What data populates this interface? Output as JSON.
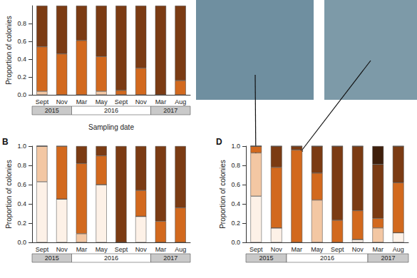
{
  "chart_data": [
    {
      "type": "bar",
      "stacked": true,
      "y_label": "Proportion of colonies",
      "x_label": "Sampling date",
      "categories": [
        "Sept",
        "Nov",
        "Mar",
        "May",
        "Sept",
        "Nov",
        "Mar",
        "Aug"
      ],
      "year_groups": [
        {
          "label": "2015",
          "span": 2
        },
        {
          "label": "2016",
          "span": 4
        },
        {
          "label": "2017",
          "span": 2
        }
      ],
      "ylim": [
        0,
        1
      ],
      "yticks": [
        {
          "value": 0,
          "label": "0.0"
        },
        {
          "value": 0.2,
          "label": "0.2"
        },
        {
          "value": 0.4,
          "label": "0.4"
        },
        {
          "value": 0.6,
          "label": "0.6"
        },
        {
          "value": 0.8,
          "label": "0.8"
        }
      ],
      "series": [
        {
          "color": "#f3c7a3",
          "values": [
            0.04,
            0,
            0,
            0.04,
            0,
            0,
            0,
            0
          ]
        },
        {
          "color": "#d2691e",
          "values": [
            0.5,
            0.46,
            0.61,
            0.39,
            0.05,
            0.3,
            0,
            0.16
          ]
        },
        {
          "color": "#7b3b13",
          "values": [
            0.46,
            0.54,
            0.39,
            0.57,
            0.95,
            0.7,
            1.0,
            0.84
          ]
        }
      ]
    },
    {
      "type": "bar",
      "stacked": true,
      "panel": "B",
      "y_label": "Proportion of colonies",
      "categories": [
        "Sept",
        "Nov",
        "Mar",
        "May",
        "Sept",
        "Nov",
        "Mar",
        "Aug"
      ],
      "year_groups": [
        {
          "label": "2015",
          "span": 2
        },
        {
          "label": "2016",
          "span": 4
        },
        {
          "label": "2017",
          "span": 2
        }
      ],
      "ylim": [
        0,
        1
      ],
      "yticks": [
        {
          "value": 0,
          "label": "0.0"
        },
        {
          "value": 0.2,
          "label": "0.2"
        },
        {
          "value": 0.4,
          "label": "0.4"
        },
        {
          "value": 0.6,
          "label": "0.6"
        },
        {
          "value": 0.8,
          "label": "0.8"
        },
        {
          "value": 1,
          "label": "1.0"
        }
      ],
      "series": [
        {
          "color": "#fdf1e7",
          "values": [
            0.63,
            0.45,
            0,
            0.6,
            0,
            0.27,
            0,
            0
          ]
        },
        {
          "color": "#f3c7a3",
          "values": [
            0.37,
            0,
            0.09,
            0,
            0,
            0,
            0,
            0
          ]
        },
        {
          "color": "#d2691e",
          "values": [
            0,
            0.55,
            0.73,
            0.3,
            0,
            0.27,
            0.22,
            0.36
          ]
        },
        {
          "color": "#7b3b13",
          "values": [
            0,
            0,
            0.18,
            0.1,
            1.0,
            0.46,
            0.78,
            0.64
          ]
        }
      ]
    },
    {
      "type": "bar",
      "stacked": true,
      "panel": "D",
      "y_label": "Proportion of colonies",
      "categories": [
        "Sept",
        "Nov",
        "Mar",
        "May",
        "Sept",
        "Nov",
        "Mar",
        "Aug"
      ],
      "year_groups": [
        {
          "label": "2015",
          "span": 2
        },
        {
          "label": "2016",
          "span": 4
        },
        {
          "label": "2017",
          "span": 2
        }
      ],
      "ylim": [
        0,
        1
      ],
      "yticks": [
        {
          "value": 0,
          "label": "0.0"
        },
        {
          "value": 0.2,
          "label": "0.2"
        },
        {
          "value": 0.4,
          "label": "0.4"
        },
        {
          "value": 0.6,
          "label": "0.6"
        },
        {
          "value": 0.8,
          "label": "0.8"
        },
        {
          "value": 1,
          "label": "1.0"
        }
      ],
      "series": [
        {
          "color": "#fdf1e7",
          "values": [
            0.48,
            0.15,
            0,
            0,
            0,
            0.03,
            0,
            0.1
          ]
        },
        {
          "color": "#f3c7a3",
          "values": [
            0.45,
            0,
            0,
            0.44,
            0,
            0,
            0.15,
            0
          ]
        },
        {
          "color": "#d2691e",
          "values": [
            0.07,
            0.63,
            0.96,
            0.28,
            0.23,
            0.3,
            0.1,
            0.52
          ]
        },
        {
          "color": "#7b3b13",
          "values": [
            0,
            0.22,
            0.04,
            0.28,
            0.77,
            0.67,
            0.56,
            0.38
          ]
        },
        {
          "color": "#3f1f0b",
          "values": [
            0,
            0,
            0,
            0,
            0,
            0,
            0.19,
            0
          ]
        }
      ]
    }
  ]
}
